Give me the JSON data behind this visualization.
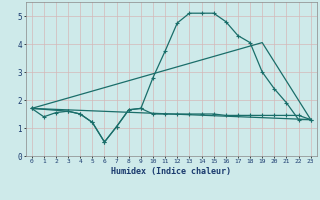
{
  "xlabel": "Humidex (Indice chaleur)",
  "bg_color": "#ceeaea",
  "grid_color": "#b8d4d4",
  "line_color": "#1a6e6a",
  "xlim": [
    -0.5,
    23.5
  ],
  "ylim": [
    0,
    5.5
  ],
  "yticks": [
    0,
    1,
    2,
    3,
    4,
    5
  ],
  "xticks": [
    0,
    1,
    2,
    3,
    4,
    5,
    6,
    7,
    8,
    9,
    10,
    11,
    12,
    13,
    14,
    15,
    16,
    17,
    18,
    19,
    20,
    21,
    22,
    23
  ],
  "line1_x": [
    0,
    1,
    2,
    3,
    4,
    5,
    6,
    7,
    8,
    9,
    10,
    11,
    12,
    13,
    14,
    15,
    16,
    17,
    18,
    19,
    20,
    21,
    22,
    23
  ],
  "line1_y": [
    1.7,
    1.4,
    1.55,
    1.6,
    1.5,
    1.2,
    0.5,
    1.05,
    1.65,
    1.7,
    1.5,
    1.5,
    1.5,
    1.5,
    1.5,
    1.5,
    1.45,
    1.45,
    1.45,
    1.45,
    1.45,
    1.45,
    1.45,
    1.3
  ],
  "line2_x": [
    0,
    3,
    4,
    5,
    6,
    7,
    8,
    9,
    10,
    11,
    12,
    13,
    14,
    15,
    16,
    17,
    18,
    19,
    20,
    21,
    22,
    23
  ],
  "line2_y": [
    1.7,
    1.6,
    1.5,
    1.2,
    0.5,
    1.05,
    1.65,
    1.7,
    2.8,
    3.75,
    4.75,
    5.1,
    5.1,
    5.1,
    4.8,
    4.3,
    4.05,
    3.0,
    2.4,
    1.9,
    1.3,
    1.3
  ],
  "line3_x": [
    0,
    19,
    23
  ],
  "line3_y": [
    1.7,
    4.05,
    1.3
  ],
  "line4_x": [
    0,
    23
  ],
  "line4_y": [
    1.7,
    1.3
  ]
}
